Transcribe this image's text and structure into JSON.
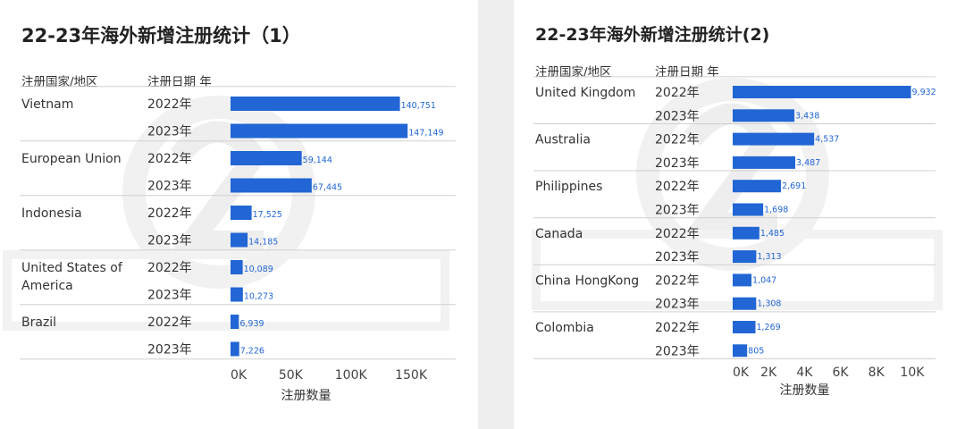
{
  "colors": {
    "bar": "#2166d4",
    "value_label": "#2166d4",
    "divider": "#d0d0d0",
    "watermark": "#f0f0f0"
  },
  "chart_data": [
    {
      "type": "bar",
      "orientation": "horizontal",
      "title": "22-23年海外新增注册统计（1）",
      "header_country": "注册国家/地区",
      "header_date": "注册日期 年",
      "xlabel": "注册数量",
      "xlim": [
        0,
        170000
      ],
      "ticks": [
        0,
        50000,
        100000,
        150000
      ],
      "tick_labels": [
        "0K",
        "50K",
        "100K",
        "150K"
      ],
      "groups": [
        {
          "country_lines": [
            "Vietnam"
          ],
          "rows": [
            {
              "year": "2022年",
              "value": 140751,
              "label": "140,751"
            },
            {
              "year": "2023年",
              "value": 147149,
              "label": "147,149"
            }
          ]
        },
        {
          "country_lines": [
            "European Union"
          ],
          "rows": [
            {
              "year": "2022年",
              "value": 59144,
              "label": "59,144"
            },
            {
              "year": "2023年",
              "value": 67445,
              "label": "67,445"
            }
          ]
        },
        {
          "country_lines": [
            "Indonesia"
          ],
          "rows": [
            {
              "year": "2022年",
              "value": 17525,
              "label": "17,525"
            },
            {
              "year": "2023年",
              "value": 14185,
              "label": "14,185"
            }
          ]
        },
        {
          "country_lines": [
            "United States of",
            "America"
          ],
          "rows": [
            {
              "year": "2022年",
              "value": 10089,
              "label": "10,089"
            },
            {
              "year": "2023年",
              "value": 10273,
              "label": "10,273"
            }
          ]
        },
        {
          "country_lines": [
            "Brazil"
          ],
          "rows": [
            {
              "year": "2022年",
              "value": 6939,
              "label": "6,939"
            },
            {
              "year": "2023年",
              "value": 7226,
              "label": "7,226"
            }
          ]
        }
      ],
      "grid": false,
      "legend": "none"
    },
    {
      "type": "bar",
      "orientation": "horizontal",
      "title": "22-23年海外新增注册统计(2)",
      "header_country": "注册国家/地区",
      "header_date": "注册日期 年",
      "xlabel": "注册数量",
      "xlim": [
        0,
        11000
      ],
      "ticks": [
        0,
        2000,
        4000,
        6000,
        8000,
        10000
      ],
      "tick_labels": [
        "0K",
        "2K",
        "4K",
        "6K",
        "8K",
        "10K"
      ],
      "groups": [
        {
          "country_lines": [
            "United Kingdom"
          ],
          "rows": [
            {
              "year": "2022年",
              "value": 9932,
              "label": "9,932"
            },
            {
              "year": "2023年",
              "value": 3438,
              "label": "3,438"
            }
          ]
        },
        {
          "country_lines": [
            "Australia"
          ],
          "rows": [
            {
              "year": "2022年",
              "value": 4537,
              "label": "4,537"
            },
            {
              "year": "2023年",
              "value": 3487,
              "label": "3,487"
            }
          ]
        },
        {
          "country_lines": [
            "Philippines"
          ],
          "rows": [
            {
              "year": "2022年",
              "value": 2691,
              "label": "2,691"
            },
            {
              "year": "2023年",
              "value": 1698,
              "label": "1,698"
            }
          ]
        },
        {
          "country_lines": [
            "Canada"
          ],
          "rows": [
            {
              "year": "2022年",
              "value": 1485,
              "label": "1,485"
            },
            {
              "year": "2023年",
              "value": 1313,
              "label": "1,313"
            }
          ]
        },
        {
          "country_lines": [
            "China HongKong"
          ],
          "rows": [
            {
              "year": "2022年",
              "value": 1047,
              "label": "1,047"
            },
            {
              "year": "2023年",
              "value": 1308,
              "label": "1,308"
            }
          ]
        },
        {
          "country_lines": [
            "Colombia"
          ],
          "rows": [
            {
              "year": "2022年",
              "value": 1269,
              "label": "1,269"
            },
            {
              "year": "2023年",
              "value": 805,
              "label": "805"
            }
          ]
        }
      ],
      "grid": false,
      "legend": "none"
    }
  ]
}
